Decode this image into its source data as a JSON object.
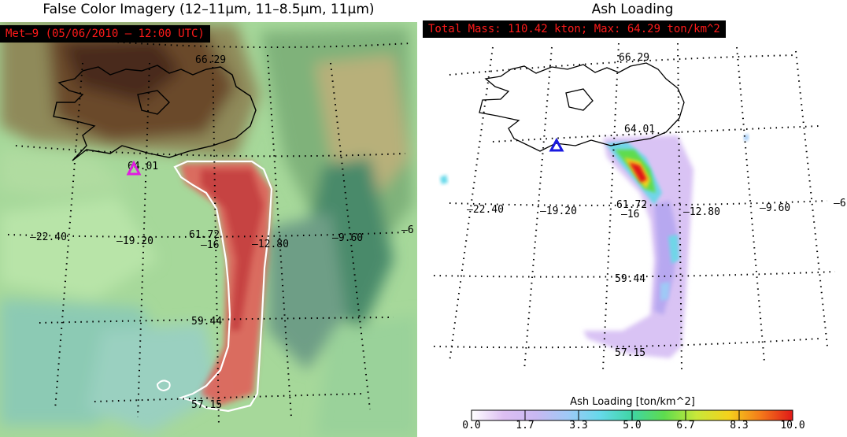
{
  "left_panel": {
    "title": "False Color Imagery (12–11µm, 11–8.5µm, 11µm)",
    "info_label": "Met–9  (05/06/2010 – 12:00 UTC)"
  },
  "right_panel": {
    "title": "Ash Loading",
    "info_label": "Total Mass: 110.42 kton; Max: 64.29 ton/km^2",
    "colorbar": {
      "title": "Ash Loading [ton/km^2]",
      "ticks": [
        "0.0",
        "1.7",
        "3.3",
        "5.0",
        "6.7",
        "8.3",
        "10.0"
      ],
      "colors": [
        "#ffffff",
        "#ddbff2",
        "#c9b8f2",
        "#9fc9f6",
        "#66d9ea",
        "#3fd6a4",
        "#5edc4e",
        "#c8e83a",
        "#f4d21c",
        "#f47a1a",
        "#e01818"
      ]
    }
  },
  "map_labels": {
    "lat": [
      "66.29",
      "64.01",
      "61.72",
      "59.44",
      "57.15"
    ],
    "lon": [
      "–22.40",
      "–19.20",
      "–16",
      "–12.80",
      "–9.60",
      "–6"
    ]
  },
  "colors": {
    "volcano_left": "#e01ce0",
    "volcano_right": "#1a1ae0",
    "coastline": "#000000",
    "plume_outline": "#ffffff"
  }
}
